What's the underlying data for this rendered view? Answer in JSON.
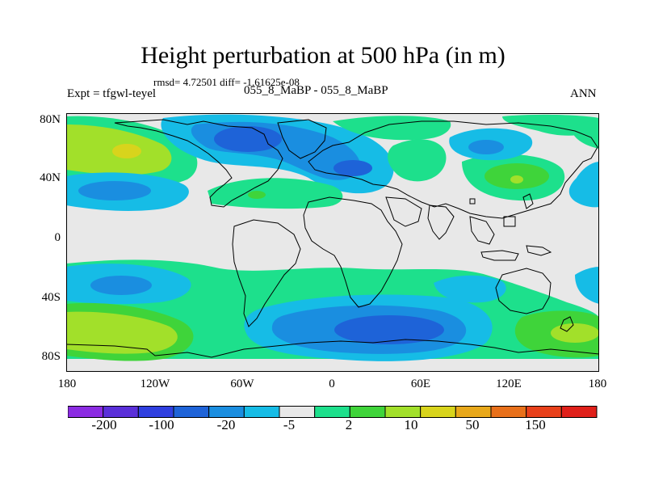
{
  "title": "Height perturbation at 500 hPa (in m)",
  "stats_line": "rmsd= 4.72501 diff= -1.61625e-08",
  "experiment": "Expt = tfgwl-teyel",
  "case_label": "055_8_MaBP - 055_8_MaBP",
  "season": "ANN",
  "lat_labels": [
    "80N",
    "40N",
    "0",
    "40S",
    "80S"
  ],
  "lon_labels": [
    "180",
    "120W",
    "60W",
    "0",
    "60E",
    "120E",
    "180"
  ],
  "colorbar": {
    "colors": [
      "#8b2be2",
      "#5a2fd9",
      "#2f3fe0",
      "#1e63d8",
      "#1a8ee0",
      "#16bce6",
      "#e8e8e8",
      "#1de08c",
      "#3fd43a",
      "#a2e02a",
      "#d8d41c",
      "#e8a81a",
      "#e8701a",
      "#e8401a",
      "#e0201a"
    ],
    "labels": [
      "-200",
      "-100",
      "-20",
      "-5",
      "2",
      "10",
      "50",
      "150"
    ]
  },
  "colors": {
    "background_field": "#e8e8e8",
    "coast": "#000000"
  }
}
